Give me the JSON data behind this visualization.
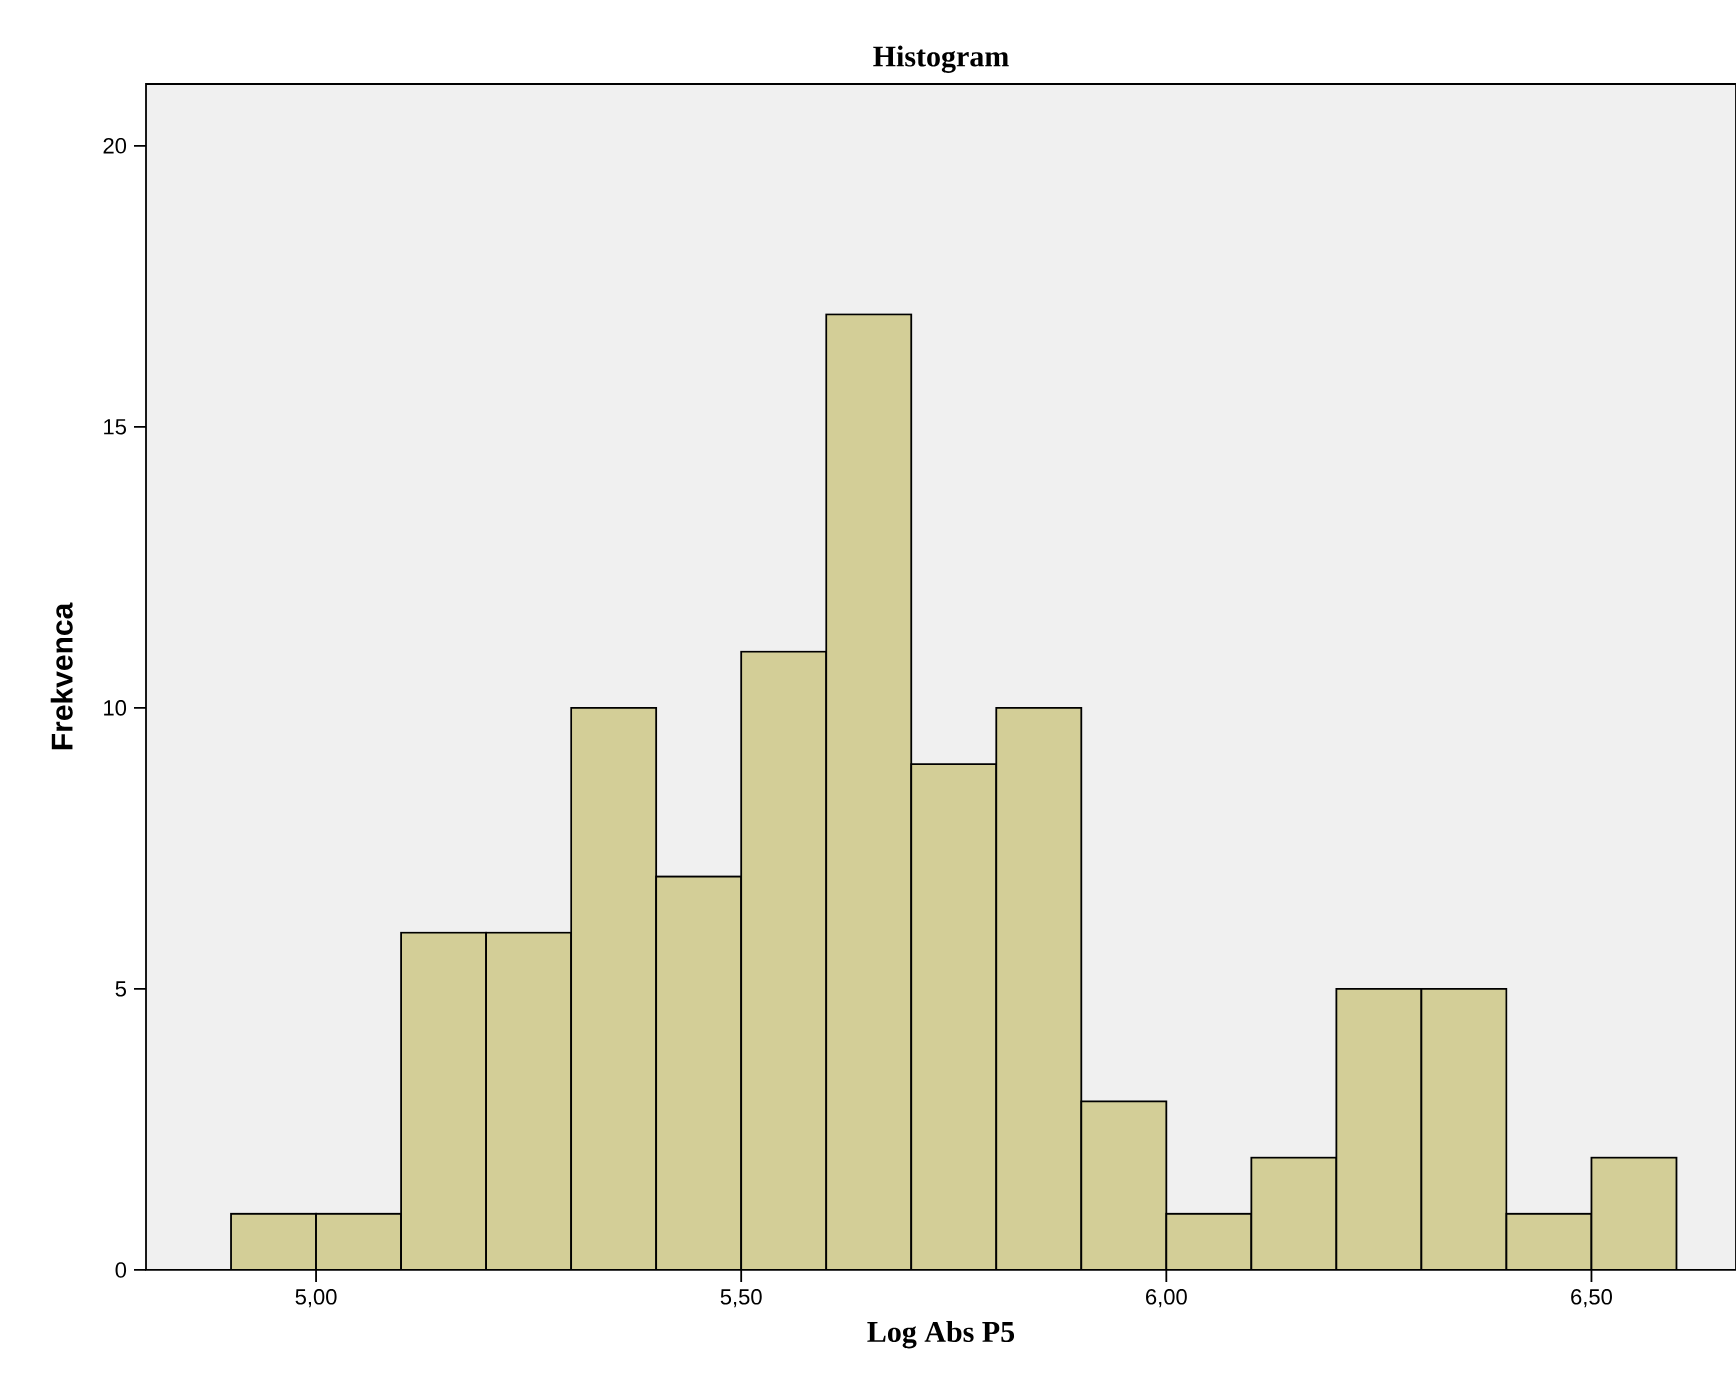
{
  "chart_data": {
    "type": "histogram",
    "title": "Histogram",
    "xlabel": "Log Abs P5",
    "ylabel": "Frekvenca",
    "bins": [
      4.9,
      5.0,
      5.1,
      5.2,
      5.3,
      5.4,
      5.5,
      5.6,
      5.7,
      5.8,
      5.9,
      6.0,
      6.1,
      6.2,
      6.3,
      6.4,
      6.5,
      6.6
    ],
    "values": [
      1,
      1,
      6,
      6,
      10,
      7,
      11,
      17,
      9,
      10,
      3,
      1,
      2,
      5,
      5,
      1,
      2
    ],
    "color": "#d3ce97",
    "xlim": [
      4.8,
      6.67
    ],
    "ylim": [
      0,
      21.1
    ],
    "xticks": [
      {
        "value": 5.0,
        "label": "5,00"
      },
      {
        "value": 5.5,
        "label": "5,50"
      },
      {
        "value": 6.0,
        "label": "6,00"
      },
      {
        "value": 6.5,
        "label": "6,50"
      }
    ],
    "yticks": [
      0,
      5,
      10,
      15,
      20
    ]
  }
}
